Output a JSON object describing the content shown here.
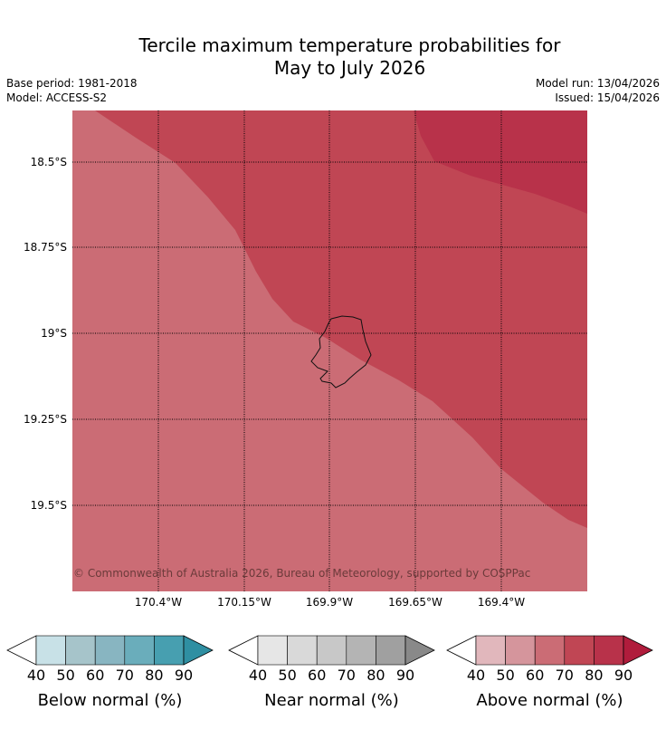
{
  "title_line1": "Tercile maximum temperature probabilities for",
  "title_line2": "May to July 2026",
  "base_period": "Base period: 1981-2018",
  "model": "Model: ACCESS-S2",
  "model_run": "Model run: 13/04/2026",
  "issued": "Issued: 15/04/2026",
  "copyright": "© Commonwealth of Australia 2026, Bureau of Meteorology, supported by COSPPac",
  "lat_labels": [
    "18.5°S",
    "18.75°S",
    "19°S",
    "19.25°S",
    "19.5°S"
  ],
  "lon_labels": [
    "170.4°W",
    "170.15°W",
    "169.9°W",
    "169.65°W",
    "169.4°W"
  ],
  "colors": {
    "above_60_70": "#cb6c75",
    "above_70_80": "#c04654",
    "above_80_90": "#b8324a"
  },
  "colorbars": [
    {
      "title": "Below normal (%)",
      "ticks": [
        "40",
        "50",
        "60",
        "70",
        "80",
        "90"
      ],
      "colors": [
        "#ffffff",
        "#c8e1e7",
        "#a6c4ca",
        "#88b5c1",
        "#6aadbb",
        "#479fb0",
        "#2f8fa2"
      ]
    },
    {
      "title": "Near normal (%)",
      "ticks": [
        "40",
        "50",
        "60",
        "70",
        "80",
        "90"
      ],
      "colors": [
        "#ffffff",
        "#e6e6e6",
        "#d9d9d9",
        "#c8c8c8",
        "#b4b4b4",
        "#a0a0a0",
        "#898989"
      ]
    },
    {
      "title": "Above normal (%)",
      "ticks": [
        "40",
        "50",
        "60",
        "70",
        "80",
        "90"
      ],
      "colors": [
        "#ffffff",
        "#e1b7bc",
        "#d5959c",
        "#cb6c75",
        "#c04654",
        "#b8324a",
        "#b01c3c"
      ]
    }
  ]
}
